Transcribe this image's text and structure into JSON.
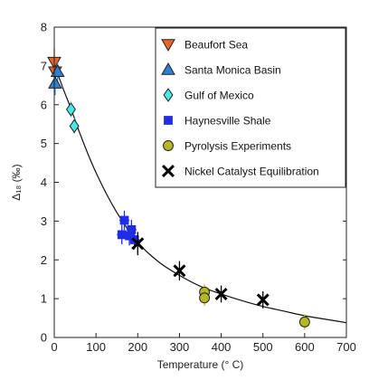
{
  "chart_data": {
    "type": "scatter",
    "xlabel": "Temperature (° C)",
    "ylabel": "Δ₁₈ (‰)",
    "xlim": [
      0,
      700
    ],
    "ylim": [
      0,
      8
    ],
    "xticks": [
      "0",
      "100",
      "200",
      "300",
      "400",
      "500",
      "600",
      "700"
    ],
    "yticks": [
      "0",
      "1",
      "2",
      "3",
      "4",
      "5",
      "6",
      "7",
      "8"
    ],
    "legend_position": "top-right",
    "fit_curve": {
      "x": [
        0,
        20,
        40,
        60,
        80,
        100,
        130,
        160,
        200,
        250,
        300,
        350,
        400,
        450,
        500,
        550,
        600,
        650,
        700
      ],
      "y": [
        7.05,
        6.45,
        5.9,
        5.3,
        4.75,
        4.25,
        3.6,
        3.05,
        2.45,
        1.95,
        1.6,
        1.32,
        1.12,
        0.95,
        0.8,
        0.68,
        0.56,
        0.47,
        0.38
      ]
    },
    "series": [
      {
        "name": "Beaufort Sea",
        "marker": "triangle-down",
        "color": "#e8642a",
        "points": [
          {
            "x": 0,
            "y": 7.1,
            "yerr": 0.35
          },
          {
            "x": 2,
            "y": 6.85,
            "yerr": 0.3
          }
        ]
      },
      {
        "name": "Santa Monica Basin",
        "marker": "triangle-up",
        "color": "#2f7fd1",
        "points": [
          {
            "x": 2,
            "y": 6.55,
            "yerr": 0.3
          },
          {
            "x": 8,
            "y": 6.85,
            "yerr": 0.25
          }
        ]
      },
      {
        "name": "Gulf of Mexico",
        "marker": "diamond",
        "color": "#49e6e6",
        "points": [
          {
            "x": 40,
            "y": 5.88,
            "yerr": 0.2,
            "xerr": 8
          },
          {
            "x": 48,
            "y": 5.45,
            "yerr": 0.2,
            "xerr": 8
          }
        ]
      },
      {
        "name": "Haynesville Shale",
        "marker": "square",
        "color": "#1f2ee6",
        "points": [
          {
            "x": 168,
            "y": 3.02,
            "yerr": 0.25,
            "xerr": 12
          },
          {
            "x": 162,
            "y": 2.65,
            "yerr": 0.25,
            "xerr": 12
          },
          {
            "x": 180,
            "y": 2.62,
            "yerr": 0.25,
            "xerr": 12
          },
          {
            "x": 185,
            "y": 2.78,
            "yerr": 0.25,
            "xerr": 12
          },
          {
            "x": 192,
            "y": 2.52,
            "yerr": 0.25,
            "xerr": 12
          }
        ]
      },
      {
        "name": "Pyrolysis Experiments",
        "marker": "circle",
        "color": "#b5b825",
        "points": [
          {
            "x": 360,
            "y": 1.17,
            "yerr": 0.2
          },
          {
            "x": 360,
            "y": 1.02,
            "yerr": 0.2
          },
          {
            "x": 600,
            "y": 0.4,
            "yerr": 0.2
          }
        ]
      },
      {
        "name": "Nickel Catalyst Equilibration",
        "marker": "x",
        "color": "#000000",
        "points": [
          {
            "x": 200,
            "y": 2.42,
            "yerr": 0.3
          },
          {
            "x": 300,
            "y": 1.72,
            "yerr": 0.25
          },
          {
            "x": 400,
            "y": 1.12,
            "yerr": 0.22
          },
          {
            "x": 500,
            "y": 0.97,
            "yerr": 0.22
          }
        ]
      }
    ]
  }
}
